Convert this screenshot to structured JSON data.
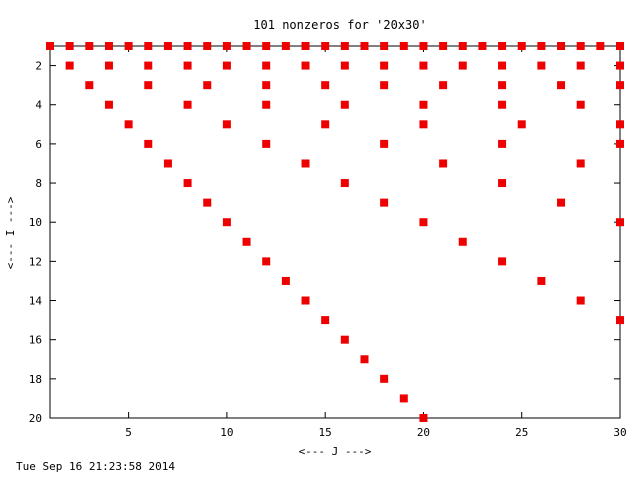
{
  "chart_data": {
    "type": "scatter",
    "title": "101 nonzeros for '20x30'",
    "xlabel": "<--- J --->",
    "ylabel": "<--- I --->",
    "xlim": [
      1,
      30
    ],
    "ylim": [
      20,
      1
    ],
    "y_inverted": true,
    "x_ticks": [
      5,
      10,
      15,
      20,
      25,
      30
    ],
    "y_ticks": [
      2,
      4,
      6,
      8,
      10,
      12,
      14,
      16,
      18,
      20
    ],
    "grid": false,
    "marker_color": "#ee0000",
    "marker": "square",
    "reference_line_y": 1,
    "series": [
      {
        "points": [
          [
            1,
            1
          ],
          [
            2,
            1
          ],
          [
            3,
            1
          ],
          [
            4,
            1
          ],
          [
            5,
            1
          ],
          [
            6,
            1
          ],
          [
            7,
            1
          ],
          [
            8,
            1
          ],
          [
            9,
            1
          ],
          [
            10,
            1
          ],
          [
            11,
            1
          ],
          [
            12,
            1
          ],
          [
            13,
            1
          ],
          [
            14,
            1
          ],
          [
            15,
            1
          ],
          [
            16,
            1
          ],
          [
            17,
            1
          ],
          [
            18,
            1
          ],
          [
            19,
            1
          ],
          [
            20,
            1
          ],
          [
            21,
            1
          ],
          [
            22,
            1
          ],
          [
            23,
            1
          ],
          [
            24,
            1
          ],
          [
            25,
            1
          ],
          [
            26,
            1
          ],
          [
            27,
            1
          ],
          [
            28,
            1
          ],
          [
            29,
            1
          ],
          [
            30,
            1
          ],
          [
            2,
            2
          ],
          [
            4,
            2
          ],
          [
            6,
            2
          ],
          [
            8,
            2
          ],
          [
            10,
            2
          ],
          [
            12,
            2
          ],
          [
            14,
            2
          ],
          [
            16,
            2
          ],
          [
            18,
            2
          ],
          [
            20,
            2
          ],
          [
            22,
            2
          ],
          [
            24,
            2
          ],
          [
            26,
            2
          ],
          [
            28,
            2
          ],
          [
            30,
            2
          ],
          [
            3,
            3
          ],
          [
            6,
            3
          ],
          [
            9,
            3
          ],
          [
            12,
            3
          ],
          [
            15,
            3
          ],
          [
            18,
            3
          ],
          [
            21,
            3
          ],
          [
            24,
            3
          ],
          [
            27,
            3
          ],
          [
            30,
            3
          ],
          [
            4,
            4
          ],
          [
            8,
            4
          ],
          [
            12,
            4
          ],
          [
            16,
            4
          ],
          [
            20,
            4
          ],
          [
            24,
            4
          ],
          [
            28,
            4
          ],
          [
            5,
            5
          ],
          [
            10,
            5
          ],
          [
            15,
            5
          ],
          [
            20,
            5
          ],
          [
            25,
            5
          ],
          [
            30,
            5
          ],
          [
            6,
            6
          ],
          [
            12,
            6
          ],
          [
            18,
            6
          ],
          [
            24,
            6
          ],
          [
            30,
            6
          ],
          [
            7,
            7
          ],
          [
            14,
            7
          ],
          [
            21,
            7
          ],
          [
            28,
            7
          ],
          [
            8,
            8
          ],
          [
            16,
            8
          ],
          [
            24,
            8
          ],
          [
            9,
            9
          ],
          [
            18,
            9
          ],
          [
            27,
            9
          ],
          [
            10,
            10
          ],
          [
            20,
            10
          ],
          [
            30,
            10
          ],
          [
            11,
            11
          ],
          [
            22,
            11
          ],
          [
            12,
            12
          ],
          [
            24,
            12
          ],
          [
            13,
            13
          ],
          [
            26,
            13
          ],
          [
            14,
            14
          ],
          [
            28,
            14
          ],
          [
            15,
            15
          ],
          [
            30,
            15
          ],
          [
            16,
            16
          ],
          [
            17,
            17
          ],
          [
            18,
            18
          ],
          [
            19,
            19
          ],
          [
            20,
            20
          ]
        ]
      }
    ]
  },
  "footer": {
    "timestamp": "Tue Sep 16 21:23:58 2014"
  }
}
